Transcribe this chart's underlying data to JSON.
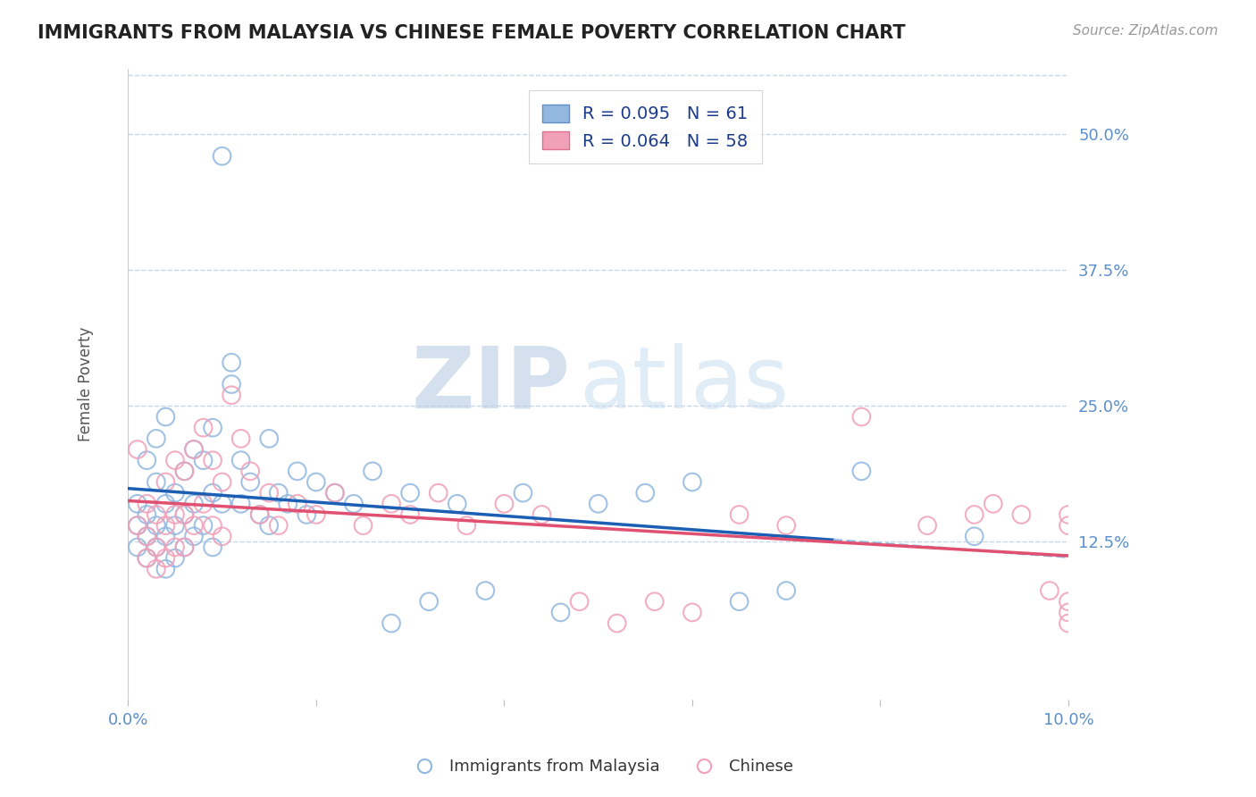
{
  "title": "IMMIGRANTS FROM MALAYSIA VS CHINESE FEMALE POVERTY CORRELATION CHART",
  "source": "Source: ZipAtlas.com",
  "ylabel": "Female Poverty",
  "watermark": "ZIPatlas",
  "xlim": [
    0.0,
    0.1
  ],
  "ylim": [
    -0.02,
    0.56
  ],
  "yticks": [
    0.125,
    0.25,
    0.375,
    0.5
  ],
  "ytick_labels": [
    "12.5%",
    "25.0%",
    "37.5%",
    "50.0%"
  ],
  "xticks": [
    0.0,
    0.02,
    0.04,
    0.06,
    0.08,
    0.1
  ],
  "xtick_labels": [
    "0.0%",
    "",
    "",
    "",
    "",
    "10.0%"
  ],
  "legend1_label": "R = 0.095   N = 61",
  "legend2_label": "R = 0.064   N = 58",
  "series1_color": "#92b8e0",
  "series2_color": "#f0a0b8",
  "series1_edge": "#6090c8",
  "series2_edge": "#e07090",
  "trend1_color": "#1a5fb4",
  "trend2_color": "#e05070",
  "trend1_dash_start": 0.075,
  "background_color": "#ffffff",
  "title_color": "#222222",
  "axis_color": "#5b8fcc",
  "watermark_color": "#c8ddf0",
  "series1_name": "Immigrants from Malaysia",
  "series2_name": "Chinese",
  "blue_scatter_x": [
    0.001,
    0.001,
    0.001,
    0.002,
    0.002,
    0.002,
    0.002,
    0.003,
    0.003,
    0.003,
    0.003,
    0.004,
    0.004,
    0.004,
    0.004,
    0.005,
    0.005,
    0.005,
    0.006,
    0.006,
    0.006,
    0.007,
    0.007,
    0.007,
    0.008,
    0.008,
    0.009,
    0.009,
    0.009,
    0.01,
    0.01,
    0.011,
    0.011,
    0.012,
    0.012,
    0.013,
    0.014,
    0.015,
    0.015,
    0.016,
    0.017,
    0.018,
    0.019,
    0.02,
    0.022,
    0.024,
    0.026,
    0.028,
    0.03,
    0.032,
    0.035,
    0.038,
    0.042,
    0.046,
    0.05,
    0.055,
    0.06,
    0.065,
    0.07,
    0.078,
    0.09
  ],
  "blue_scatter_y": [
    0.16,
    0.14,
    0.12,
    0.2,
    0.15,
    0.13,
    0.11,
    0.18,
    0.14,
    0.12,
    0.22,
    0.24,
    0.16,
    0.13,
    0.1,
    0.17,
    0.14,
    0.11,
    0.19,
    0.15,
    0.12,
    0.21,
    0.16,
    0.13,
    0.2,
    0.14,
    0.23,
    0.17,
    0.12,
    0.48,
    0.16,
    0.27,
    0.29,
    0.2,
    0.16,
    0.18,
    0.15,
    0.22,
    0.14,
    0.17,
    0.16,
    0.19,
    0.15,
    0.18,
    0.17,
    0.16,
    0.19,
    0.05,
    0.17,
    0.07,
    0.16,
    0.08,
    0.17,
    0.06,
    0.16,
    0.17,
    0.18,
    0.07,
    0.08,
    0.19,
    0.13
  ],
  "pink_scatter_x": [
    0.001,
    0.001,
    0.002,
    0.002,
    0.002,
    0.003,
    0.003,
    0.003,
    0.004,
    0.004,
    0.004,
    0.005,
    0.005,
    0.005,
    0.006,
    0.006,
    0.006,
    0.007,
    0.007,
    0.008,
    0.008,
    0.009,
    0.009,
    0.01,
    0.01,
    0.011,
    0.012,
    0.013,
    0.014,
    0.015,
    0.016,
    0.018,
    0.02,
    0.022,
    0.025,
    0.028,
    0.03,
    0.033,
    0.036,
    0.04,
    0.044,
    0.048,
    0.052,
    0.056,
    0.06,
    0.065,
    0.07,
    0.078,
    0.085,
    0.09,
    0.092,
    0.095,
    0.098,
    0.1,
    0.1,
    0.1,
    0.1,
    0.1
  ],
  "pink_scatter_y": [
    0.14,
    0.21,
    0.16,
    0.13,
    0.11,
    0.15,
    0.12,
    0.1,
    0.18,
    0.14,
    0.11,
    0.2,
    0.15,
    0.12,
    0.19,
    0.15,
    0.12,
    0.21,
    0.14,
    0.23,
    0.16,
    0.2,
    0.14,
    0.18,
    0.13,
    0.26,
    0.22,
    0.19,
    0.15,
    0.17,
    0.14,
    0.16,
    0.15,
    0.17,
    0.14,
    0.16,
    0.15,
    0.17,
    0.14,
    0.16,
    0.15,
    0.07,
    0.05,
    0.07,
    0.06,
    0.15,
    0.14,
    0.24,
    0.14,
    0.15,
    0.16,
    0.15,
    0.08,
    0.14,
    0.15,
    0.07,
    0.06,
    0.05
  ]
}
